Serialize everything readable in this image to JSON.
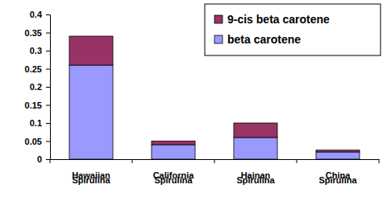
{
  "chart_data": {
    "type": "bar",
    "stacked": true,
    "legend": "top-right",
    "grid": false,
    "categories": [
      "Hawaiian Spirulina",
      "California Spirulina",
      "Hainan Spirulina",
      "China Spirulina"
    ],
    "series": [
      {
        "name": "beta carotene",
        "color": "#9999ff",
        "values": [
          0.26,
          0.04,
          0.06,
          0.02
        ]
      },
      {
        "name": "9-cis beta carotene",
        "color": "#993366",
        "values": [
          0.08,
          0.01,
          0.04,
          0.005
        ]
      }
    ],
    "ylim": [
      0,
      0.4
    ],
    "yticks": [
      0,
      0.05,
      0.1,
      0.15,
      0.2,
      0.25,
      0.3,
      0.35,
      0.4
    ]
  }
}
